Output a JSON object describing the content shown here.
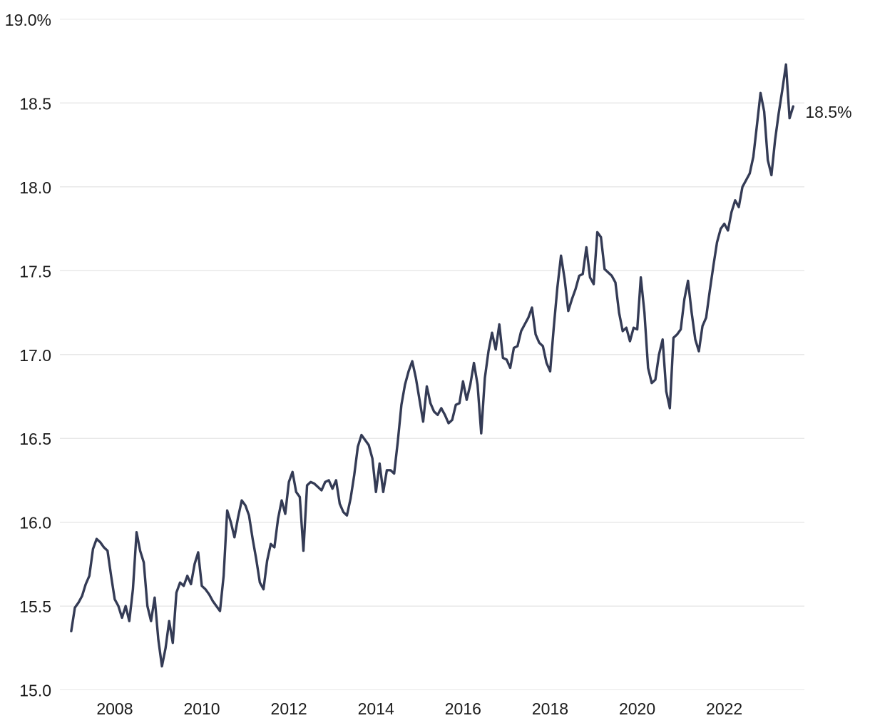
{
  "chart_data": {
    "type": "line",
    "title": "",
    "unit": "%",
    "frequency": "monthly",
    "start_year": 2007,
    "start_month": 1,
    "xlim": [
      2006.74,
      2023.84
    ],
    "ylim": [
      15.0,
      19.0
    ],
    "grid": "horizontal",
    "legend": "none",
    "line_color": "#343B55",
    "grid_color": "#E8E8E8",
    "label_color": "#1B1B1B",
    "end_label": "18.5%",
    "y_ticks": [
      {
        "value": 19.0,
        "label": "19.0%"
      },
      {
        "value": 18.5,
        "label": "18.5"
      },
      {
        "value": 18.0,
        "label": "18.0"
      },
      {
        "value": 17.5,
        "label": "17.5"
      },
      {
        "value": 17.0,
        "label": "17.0"
      },
      {
        "value": 16.5,
        "label": "16.5"
      },
      {
        "value": 16.0,
        "label": "16.0"
      },
      {
        "value": 15.5,
        "label": "15.5"
      },
      {
        "value": 15.0,
        "label": "15.0"
      }
    ],
    "x_ticks": [
      {
        "value": 2008,
        "label": "2008"
      },
      {
        "value": 2010,
        "label": "2010"
      },
      {
        "value": 2012,
        "label": "2012"
      },
      {
        "value": 2014,
        "label": "2014"
      },
      {
        "value": 2016,
        "label": "2016"
      },
      {
        "value": 2018,
        "label": "2018"
      },
      {
        "value": 2020,
        "label": "2020"
      },
      {
        "value": 2022,
        "label": "2022"
      }
    ],
    "values": [
      15.35,
      15.49,
      15.52,
      15.56,
      15.63,
      15.68,
      15.84,
      15.9,
      15.88,
      15.85,
      15.83,
      15.68,
      15.54,
      15.5,
      15.43,
      15.5,
      15.41,
      15.6,
      15.94,
      15.83,
      15.76,
      15.5,
      15.41,
      15.55,
      15.3,
      15.14,
      15.25,
      15.41,
      15.28,
      15.58,
      15.64,
      15.62,
      15.68,
      15.63,
      15.75,
      15.82,
      15.62,
      15.6,
      15.57,
      15.53,
      15.5,
      15.47,
      15.68,
      16.07,
      16.0,
      15.91,
      16.03,
      16.13,
      16.1,
      16.04,
      15.9,
      15.78,
      15.64,
      15.6,
      15.77,
      15.87,
      15.85,
      16.02,
      16.13,
      16.05,
      16.24,
      16.3,
      16.18,
      16.15,
      15.83,
      16.22,
      16.24,
      16.23,
      16.21,
      16.19,
      16.24,
      16.25,
      16.2,
      16.25,
      16.11,
      16.06,
      16.04,
      16.14,
      16.28,
      16.45,
      16.52,
      16.49,
      16.46,
      16.38,
      16.18,
      16.35,
      16.18,
      16.31,
      16.31,
      16.29,
      16.48,
      16.7,
      16.82,
      16.9,
      16.96,
      16.86,
      16.73,
      16.6,
      16.81,
      16.71,
      16.66,
      16.64,
      16.68,
      16.64,
      16.59,
      16.61,
      16.7,
      16.71,
      16.84,
      16.73,
      16.82,
      16.95,
      16.82,
      16.53,
      16.86,
      17.02,
      17.13,
      17.03,
      17.18,
      16.98,
      16.97,
      16.92,
      17.04,
      17.05,
      17.14,
      17.18,
      17.22,
      17.28,
      17.12,
      17.07,
      17.05,
      16.95,
      16.9,
      17.16,
      17.4,
      17.59,
      17.45,
      17.26,
      17.33,
      17.39,
      17.47,
      17.48,
      17.64,
      17.46,
      17.42,
      17.73,
      17.7,
      17.51,
      17.49,
      17.47,
      17.43,
      17.25,
      17.14,
      17.16,
      17.08,
      17.16,
      17.15,
      17.46,
      17.25,
      16.92,
      16.83,
      16.85,
      17.0,
      17.09,
      16.78,
      16.68,
      17.1,
      17.12,
      17.15,
      17.33,
      17.44,
      17.25,
      17.09,
      17.02,
      17.17,
      17.22,
      17.38,
      17.53,
      17.67,
      17.75,
      17.78,
      17.74,
      17.85,
      17.92,
      17.88,
      18.0,
      18.04,
      18.08,
      18.18,
      18.37,
      18.56,
      18.45,
      18.16,
      18.07,
      18.28,
      18.44,
      18.58,
      18.73,
      18.41,
      18.48
    ]
  }
}
